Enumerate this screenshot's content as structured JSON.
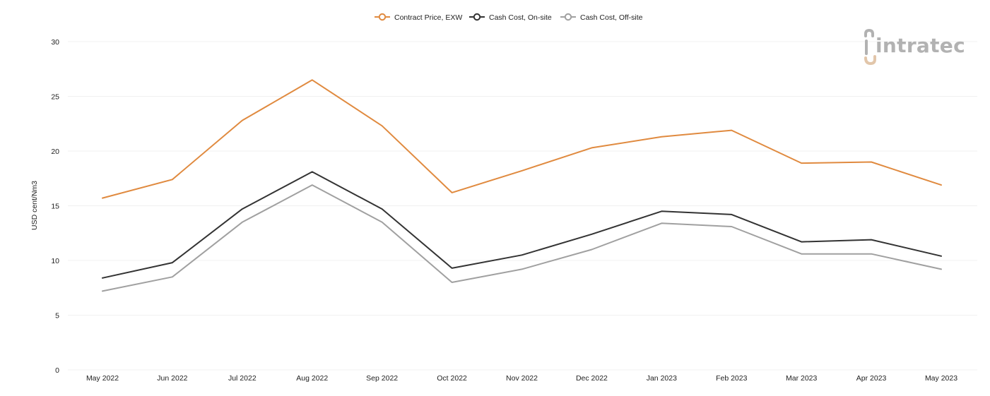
{
  "brand": {
    "name": "intratec",
    "gray": "#b2b2b2",
    "accent": "#e2c6aa"
  },
  "chart_data": {
    "type": "line",
    "title": "",
    "xlabel": "",
    "ylabel": "USD cent/Nm3",
    "ylim": [
      0,
      30
    ],
    "yticks": [
      0,
      5,
      10,
      15,
      20,
      25,
      30
    ],
    "grid": true,
    "legend_position": "top-center",
    "categories": [
      "May 2022",
      "Jun 2022",
      "Jul 2022",
      "Aug 2022",
      "Sep 2022",
      "Oct 2022",
      "Nov 2022",
      "Dec 2022",
      "Jan 2023",
      "Feb 2023",
      "Mar 2023",
      "Apr 2023",
      "May 2023"
    ],
    "series": [
      {
        "name": "Contract Price, EXW",
        "color": "#e08a3f",
        "values": [
          15.7,
          17.4,
          22.8,
          26.5,
          22.3,
          16.2,
          18.2,
          20.3,
          21.3,
          21.9,
          18.9,
          19.0,
          16.9
        ]
      },
      {
        "name": "Cash Cost, On-site",
        "color": "#333333",
        "values": [
          8.4,
          9.8,
          14.7,
          18.1,
          14.7,
          9.3,
          10.5,
          12.4,
          14.5,
          14.2,
          11.7,
          11.9,
          10.4
        ]
      },
      {
        "name": "Cash Cost, Off-site",
        "color": "#a0a0a0",
        "values": [
          7.2,
          8.5,
          13.5,
          16.9,
          13.5,
          8.0,
          9.2,
          11.0,
          13.4,
          13.1,
          10.6,
          10.6,
          9.2
        ]
      }
    ]
  }
}
